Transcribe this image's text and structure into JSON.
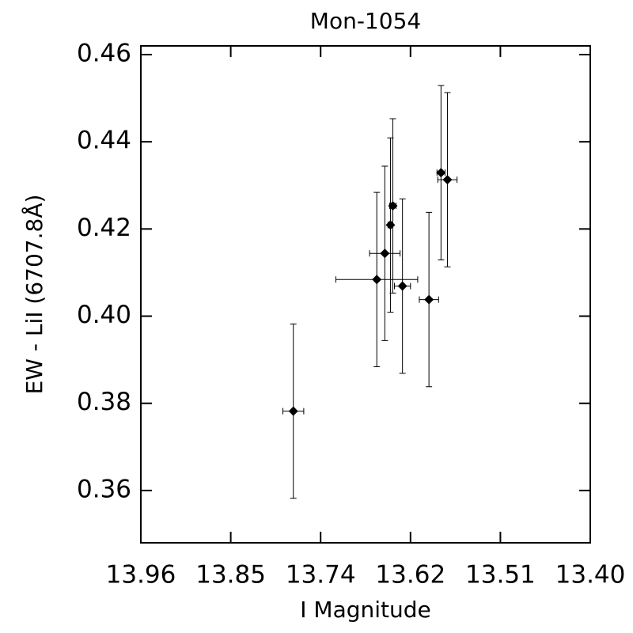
{
  "chart_data": {
    "type": "scatter",
    "title": "Mon-1054",
    "xlabel": "I Magnitude",
    "ylabel": "EW - LiI (6707.8Å)",
    "color": "#000000",
    "marker": "diamond",
    "xlim": [
      13.96,
      13.4
    ],
    "ylim": [
      0.348,
      0.462
    ],
    "xticks": [
      13.96,
      {
        "value": 13.848,
        "label": "13.85"
      },
      {
        "value": 13.736,
        "label": "13.74"
      },
      {
        "value": 13.624,
        "label": "13.62"
      },
      {
        "value": 13.512,
        "label": "13.51"
      },
      {
        "value": 13.4,
        "label": "13.40"
      }
    ],
    "yticks": [
      0.36,
      0.38,
      {
        "value": 0.4,
        "label": "0.40"
      },
      0.42,
      0.44,
      0.46
    ],
    "x": [
      13.77,
      13.666,
      13.656,
      13.634,
      13.649,
      13.646,
      13.601,
      13.586,
      13.578
    ],
    "y": [
      0.3782,
      0.4084,
      0.4144,
      0.4069,
      0.4209,
      0.4253,
      0.4038,
      0.4329,
      0.4313
    ],
    "xerr": [
      0.013,
      0.051,
      0.019,
      0.01,
      0.003,
      0.004,
      0.012,
      0.005,
      0.012
    ],
    "yerr": [
      0.02,
      0.02,
      0.02,
      0.02,
      0.02,
      0.02,
      0.02,
      0.02,
      0.02
    ]
  }
}
